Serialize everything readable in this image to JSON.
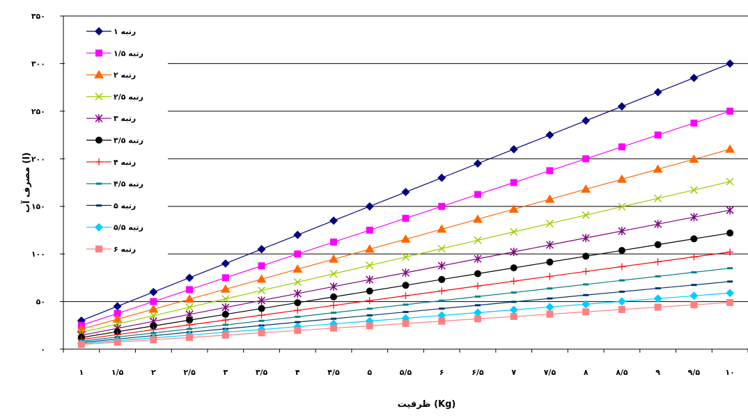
{
  "chart_data": {
    "type": "line",
    "xlabel": "ظرفیت (Kg)",
    "ylabel": "مصرف آب (l)",
    "x": [
      1,
      1.5,
      2,
      2.5,
      3,
      3.5,
      4,
      4.5,
      5,
      5.5,
      6,
      6.5,
      7,
      7.5,
      8,
      8.5,
      9,
      9.5,
      10
    ],
    "x_tick_labels": [
      "۱",
      "۱/۵",
      "۲",
      "۲/۵",
      "۳",
      "۳/۵",
      "۴",
      "۴/۵",
      "۵",
      "۵/۵",
      "۶",
      "۶/۵",
      "۷",
      "۷/۵",
      "۸",
      "۸/۵",
      "۹",
      "۹/۵",
      "۱۰"
    ],
    "ylim": [
      0,
      350
    ],
    "y_ticks": [
      0,
      50,
      100,
      150,
      200,
      250,
      300,
      350
    ],
    "y_tick_labels": [
      "۰",
      "۵۰",
      "۱۰۰",
      "۱۵۰",
      "۲۰۰",
      "۲۵۰",
      "۳۰۰",
      "۳۵۰"
    ],
    "grid": "horizontal",
    "legend": "top-left",
    "series": [
      {
        "name": "رتبه ۱",
        "color": "#000080",
        "marker": "diamond",
        "slope": 30
      },
      {
        "name": "رتبه ۱/۵",
        "color": "#ff00ff",
        "marker": "square",
        "slope": 25
      },
      {
        "name": "رتبه ۲",
        "color": "#ff6600",
        "marker": "triangle",
        "slope": 21
      },
      {
        "name": "رتبه ۲/۵",
        "color": "#99cc00",
        "marker": "x",
        "slope": 17.6
      },
      {
        "name": "رتبه ۳",
        "color": "#800080",
        "marker": "star",
        "slope": 14.6
      },
      {
        "name": "رتبه ۳/۵",
        "color": "#000000",
        "marker": "circle",
        "slope": 12.2
      },
      {
        "name": "رتبه ۴",
        "color": "#ff0000",
        "marker": "plus",
        "slope": 10.2
      },
      {
        "name": "رتبه ۴/۵",
        "color": "#008080",
        "marker": "dash",
        "slope": 8.5
      },
      {
        "name": "رتبه ۵",
        "color": "#003366",
        "marker": "dash",
        "slope": 7.1
      },
      {
        "name": "رتبه ۵/۵",
        "color": "#00ccff",
        "marker": "diamond",
        "slope": 5.9
      },
      {
        "name": "رتبه ۶",
        "color": "#ff8080",
        "marker": "square",
        "slope": 4.9
      }
    ]
  }
}
